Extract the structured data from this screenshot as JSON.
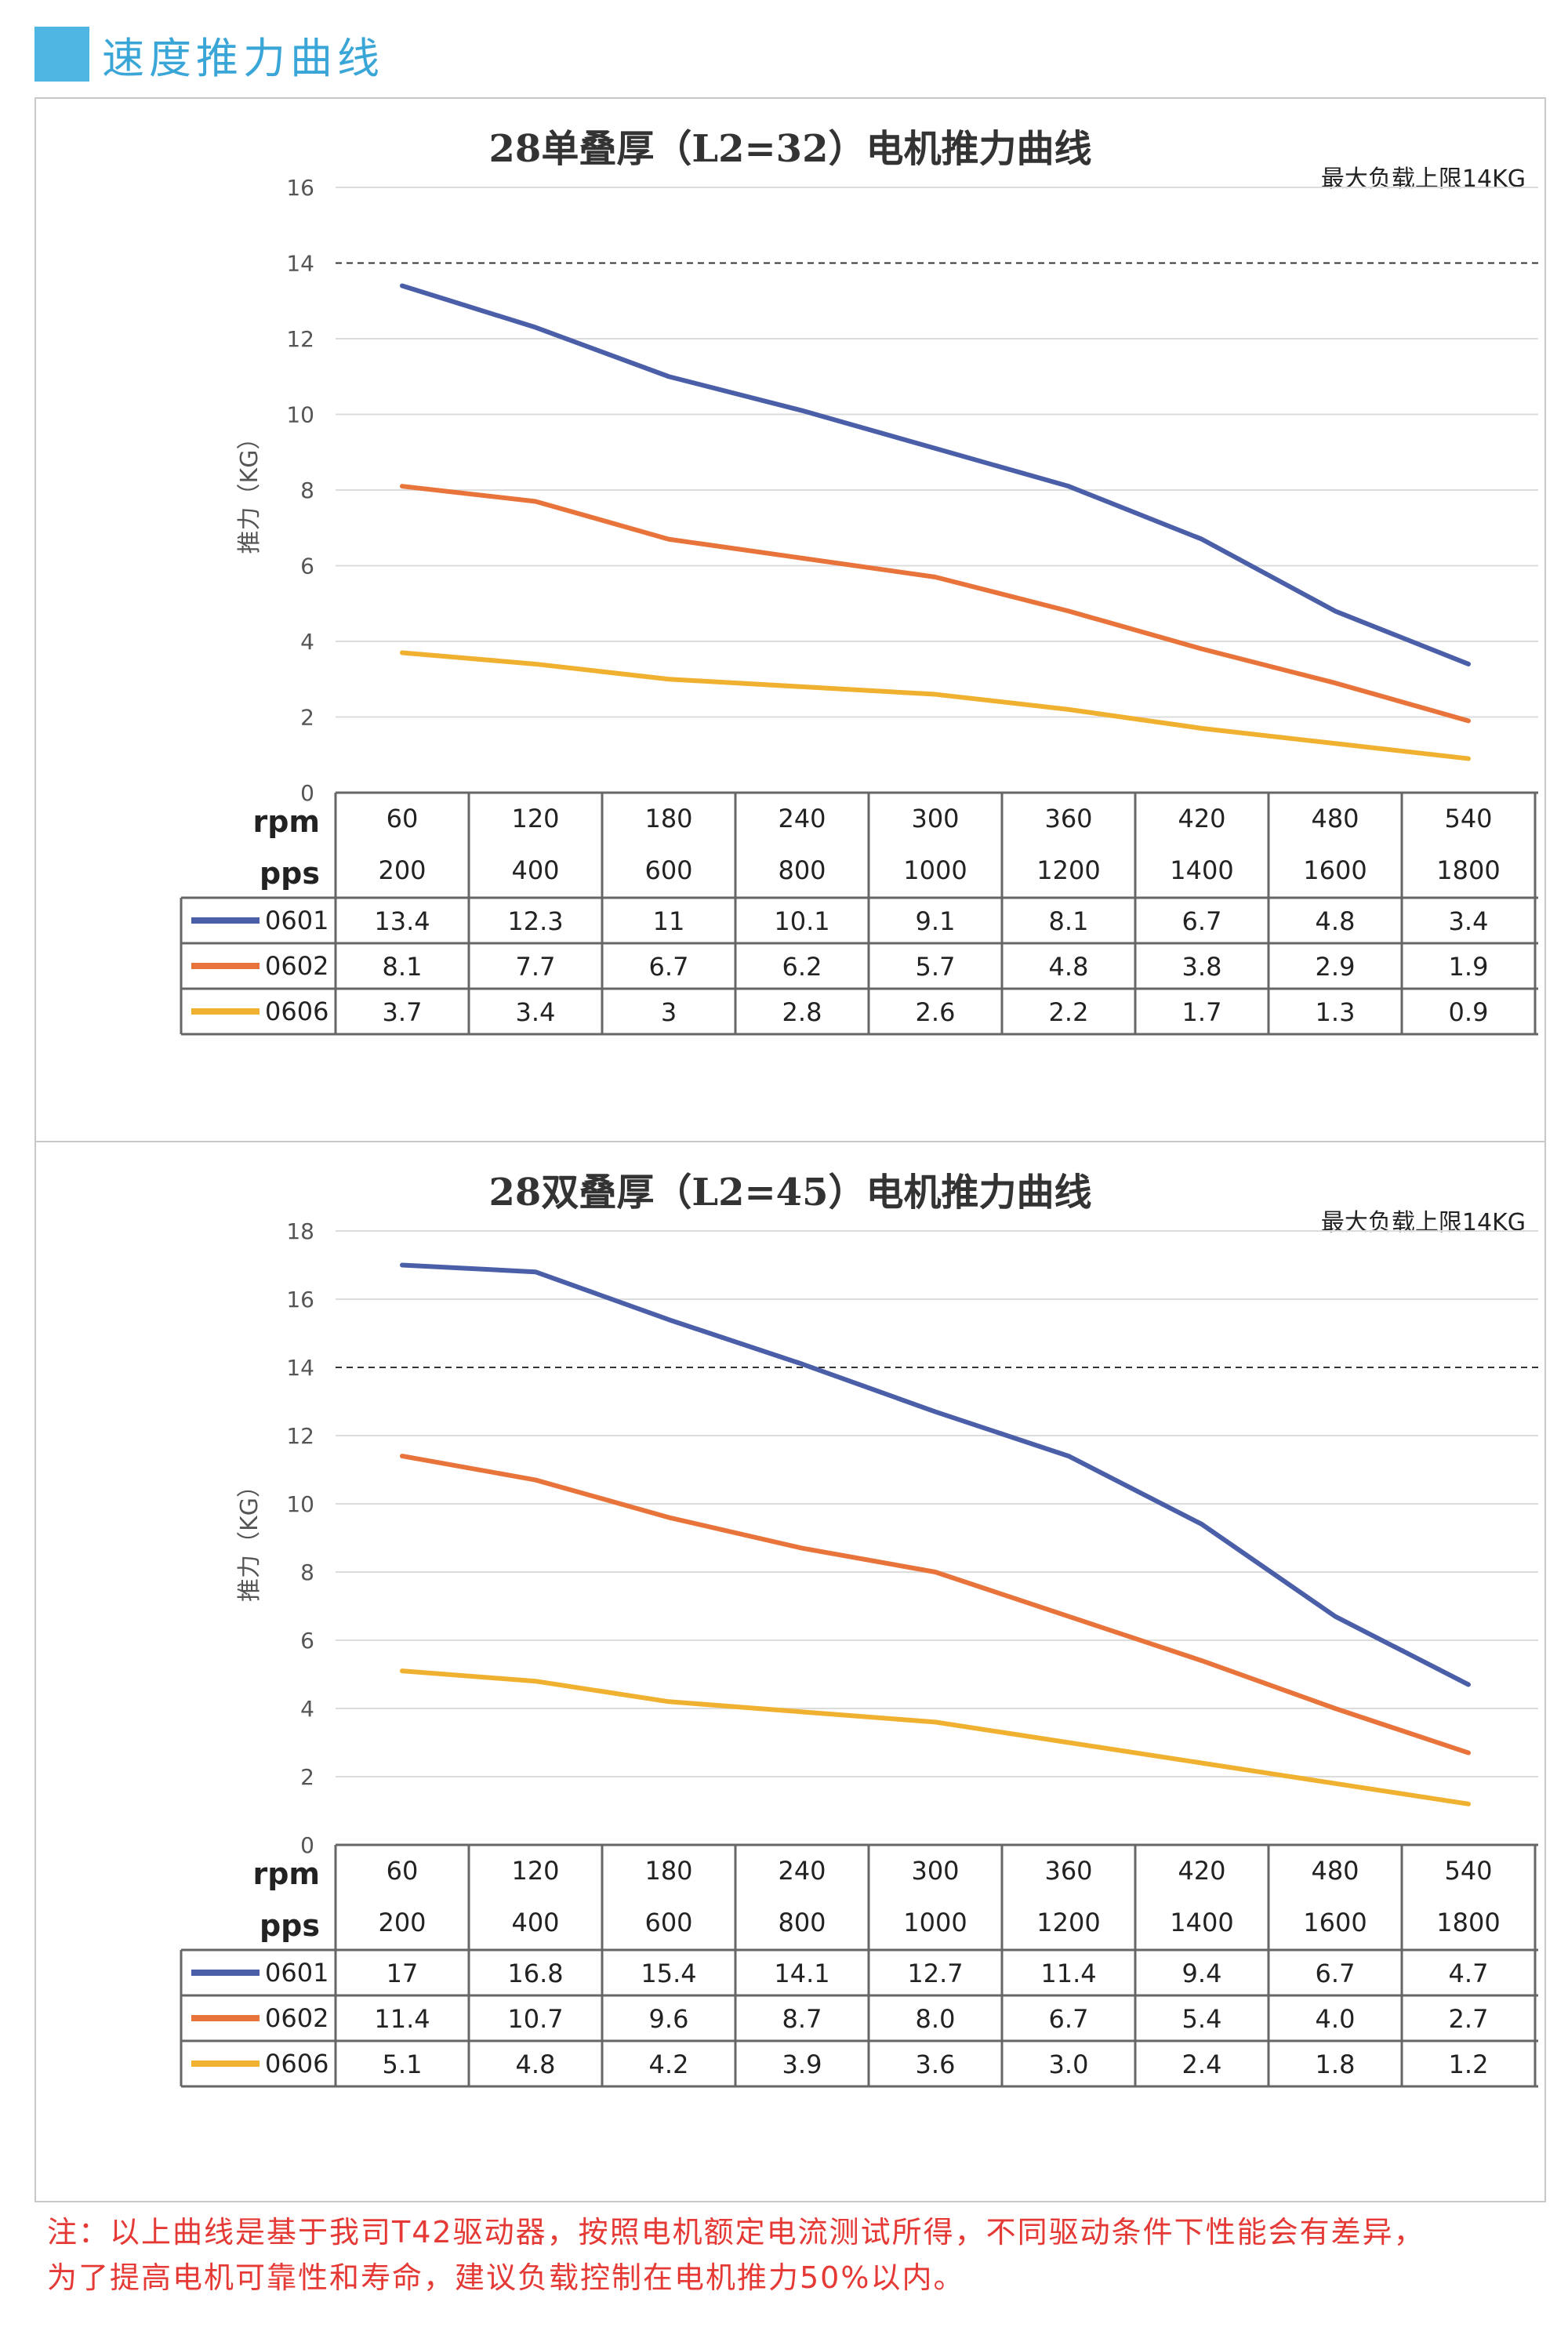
{
  "header": {
    "title": "速度推力曲线"
  },
  "colors": {
    "accent": "#4fb6e3",
    "s0601": "#4a5fa8",
    "s0602": "#e8743b",
    "s0606": "#f0b030",
    "note": "#e53935"
  },
  "chart_data": [
    {
      "type": "line",
      "title": "28单叠厚（L2=32）电机推力曲线",
      "ylabel": "推力（KG）",
      "annotation": "最大负载上限14KG",
      "ylim": [
        0,
        16
      ],
      "yticks": [
        0,
        2,
        4,
        6,
        8,
        10,
        12,
        14,
        16
      ],
      "limit_line": 14,
      "grid": true,
      "row_labels": [
        "rpm",
        "pps"
      ],
      "rpm": [
        "60",
        "120",
        "180",
        "240",
        "300",
        "360",
        "420",
        "480",
        "540"
      ],
      "pps": [
        "200",
        "400",
        "600",
        "800",
        "1000",
        "1200",
        "1400",
        "1600",
        "1800"
      ],
      "series": [
        {
          "name": "0601",
          "values": [
            13.4,
            12.3,
            11,
            10.1,
            9.1,
            8.1,
            6.7,
            4.8,
            3.4
          ],
          "labels": [
            "13.4",
            "12.3",
            "11",
            "10.1",
            "9.1",
            "8.1",
            "6.7",
            "4.8",
            "3.4"
          ]
        },
        {
          "name": "0602",
          "values": [
            8.1,
            7.7,
            6.7,
            6.2,
            5.7,
            4.8,
            3.8,
            2.9,
            1.9
          ],
          "labels": [
            "8.1",
            "7.7",
            "6.7",
            "6.2",
            "5.7",
            "4.8",
            "3.8",
            "2.9",
            "1.9"
          ]
        },
        {
          "name": "0606",
          "values": [
            3.7,
            3.4,
            3,
            2.8,
            2.6,
            2.2,
            1.7,
            1.3,
            0.9
          ],
          "labels": [
            "3.7",
            "3.4",
            "3",
            "2.8",
            "2.6",
            "2.2",
            "1.7",
            "1.3",
            "0.9"
          ]
        }
      ]
    },
    {
      "type": "line",
      "title": "28双叠厚（L2=45）电机推力曲线",
      "ylabel": "推力（KG）",
      "annotation": "最大负载上限14KG",
      "ylim": [
        0,
        18
      ],
      "yticks": [
        0,
        2,
        4,
        6,
        8,
        10,
        12,
        14,
        16,
        18
      ],
      "limit_line": 14,
      "grid": true,
      "row_labels": [
        "rpm",
        "pps"
      ],
      "rpm": [
        "60",
        "120",
        "180",
        "240",
        "300",
        "360",
        "420",
        "480",
        "540"
      ],
      "pps": [
        "200",
        "400",
        "600",
        "800",
        "1000",
        "1200",
        "1400",
        "1600",
        "1800"
      ],
      "series": [
        {
          "name": "0601",
          "values": [
            17,
            16.8,
            15.4,
            14.1,
            12.7,
            11.4,
            9.4,
            6.7,
            4.7
          ],
          "labels": [
            "17",
            "16.8",
            "15.4",
            "14.1",
            "12.7",
            "11.4",
            "9.4",
            "6.7",
            "4.7"
          ]
        },
        {
          "name": "0602",
          "values": [
            11.4,
            10.7,
            9.6,
            8.7,
            8.0,
            6.7,
            5.4,
            4.0,
            2.7
          ],
          "labels": [
            "11.4",
            "10.7",
            "9.6",
            "8.7",
            "8.0",
            "6.7",
            "5.4",
            "4.0",
            "2.7"
          ]
        },
        {
          "name": "0606",
          "values": [
            5.1,
            4.8,
            4.2,
            3.9,
            3.6,
            3.0,
            2.4,
            1.8,
            1.2
          ],
          "labels": [
            "5.1",
            "4.8",
            "4.2",
            "3.9",
            "3.6",
            "3.0",
            "2.4",
            "1.8",
            "1.2"
          ]
        }
      ]
    }
  ],
  "note": {
    "line1": "注：以上曲线是基于我司T42驱动器，按照电机额定电流测试所得，不同驱动条件下性能会有差异，",
    "line2": "为了提高电机可靠性和寿命，建议负载控制在电机推力50%以内。"
  }
}
